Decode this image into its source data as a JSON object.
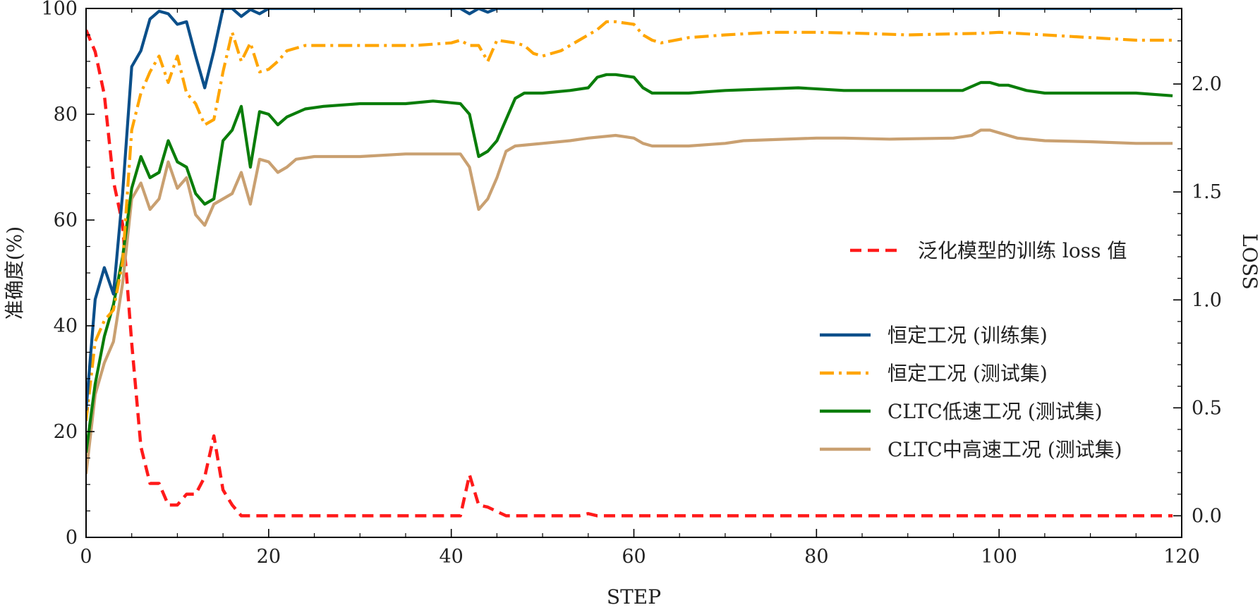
{
  "chart_data": {
    "type": "line",
    "title": "",
    "xlabel": "STEP",
    "ylabel_left": "准确度(%)",
    "ylabel_right": "LOSS",
    "xlim": [
      0,
      120
    ],
    "ylim_left": [
      0,
      100
    ],
    "ylim_right": [
      -0.1,
      2.35
    ],
    "xticks": [
      0,
      20,
      40,
      60,
      80,
      100,
      120
    ],
    "yticks_left": [
      0,
      20,
      40,
      60,
      80,
      100
    ],
    "yticks_right": [
      0.0,
      0.5,
      1.0,
      1.5,
      2.0
    ],
    "xtick_labels": [
      "0",
      "20",
      "40",
      "60",
      "80",
      "100",
      "120"
    ],
    "ytick_labels_left": [
      "0",
      "20",
      "40",
      "60",
      "80",
      "100"
    ],
    "ytick_labels_right": [
      "0.0",
      "0.5",
      "1.0",
      "1.5",
      "2.0"
    ],
    "grid": false,
    "legend_loss_placement": "center-right",
    "legend_accuracy_placement": "lower-right",
    "series": [
      {
        "name": "恒定工况 (训练集)",
        "axis": "left",
        "color": "#0b4f8a",
        "dash": "solid",
        "points": [
          [
            0,
            24
          ],
          [
            1,
            45
          ],
          [
            2,
            51
          ],
          [
            3,
            46
          ],
          [
            4,
            65
          ],
          [
            5,
            89
          ],
          [
            6,
            92
          ],
          [
            7,
            98
          ],
          [
            8,
            99.5
          ],
          [
            9,
            99
          ],
          [
            10,
            97
          ],
          [
            11,
            97.5
          ],
          [
            12,
            91
          ],
          [
            13,
            85
          ],
          [
            14,
            92
          ],
          [
            15,
            100
          ],
          [
            16,
            100
          ],
          [
            17,
            98.5
          ],
          [
            18,
            99.8
          ],
          [
            19,
            99
          ],
          [
            20,
            100
          ],
          [
            30,
            100
          ],
          [
            40,
            100
          ],
          [
            41,
            100
          ],
          [
            42,
            99
          ],
          [
            43,
            100
          ],
          [
            44,
            99.3
          ],
          [
            45,
            100
          ],
          [
            60,
            100
          ],
          [
            80,
            100
          ],
          [
            100,
            100
          ],
          [
            119,
            100
          ]
        ]
      },
      {
        "name": "恒定工况 (测试集)",
        "axis": "left",
        "color": "#ffa500",
        "dash": "dashdot",
        "points": [
          [
            0,
            22
          ],
          [
            1,
            37
          ],
          [
            2,
            41
          ],
          [
            3,
            43
          ],
          [
            4,
            52
          ],
          [
            5,
            77
          ],
          [
            6,
            84
          ],
          [
            7,
            88
          ],
          [
            8,
            91
          ],
          [
            9,
            86
          ],
          [
            10,
            91
          ],
          [
            11,
            84
          ],
          [
            12,
            82
          ],
          [
            13,
            78
          ],
          [
            14,
            79
          ],
          [
            15,
            88
          ],
          [
            16,
            95.5
          ],
          [
            17,
            90
          ],
          [
            18,
            93.5
          ],
          [
            19,
            88
          ],
          [
            20,
            88.5
          ],
          [
            21,
            90
          ],
          [
            22,
            92
          ],
          [
            24,
            93
          ],
          [
            26,
            93
          ],
          [
            30,
            93
          ],
          [
            36,
            93
          ],
          [
            40,
            93.5
          ],
          [
            41,
            94
          ],
          [
            42,
            93
          ],
          [
            43,
            93
          ],
          [
            44,
            90
          ],
          [
            45,
            94
          ],
          [
            47,
            93.5
          ],
          [
            48,
            93
          ],
          [
            49,
            91.5
          ],
          [
            50,
            91
          ],
          [
            52,
            92
          ],
          [
            54,
            94
          ],
          [
            56,
            96
          ],
          [
            57,
            97.5
          ],
          [
            58,
            97.5
          ],
          [
            60,
            97
          ],
          [
            61,
            95
          ],
          [
            62,
            94
          ],
          [
            63,
            93.5
          ],
          [
            66,
            94.5
          ],
          [
            70,
            95
          ],
          [
            75,
            95.5
          ],
          [
            80,
            95.5
          ],
          [
            85,
            95.3
          ],
          [
            90,
            95
          ],
          [
            95,
            95.2
          ],
          [
            98,
            95.3
          ],
          [
            100,
            95.5
          ],
          [
            105,
            95
          ],
          [
            110,
            94.5
          ],
          [
            115,
            94
          ],
          [
            119,
            94
          ]
        ]
      },
      {
        "name": "CLTC低速工况 (测试集)",
        "axis": "left",
        "color": "#0a7d0a",
        "dash": "solid",
        "points": [
          [
            0,
            16
          ],
          [
            1,
            29
          ],
          [
            2,
            38
          ],
          [
            3,
            44
          ],
          [
            4,
            53
          ],
          [
            5,
            66
          ],
          [
            6,
            72
          ],
          [
            7,
            68
          ],
          [
            8,
            69
          ],
          [
            9,
            75
          ],
          [
            10,
            71
          ],
          [
            11,
            70
          ],
          [
            12,
            65
          ],
          [
            13,
            63
          ],
          [
            14,
            64
          ],
          [
            15,
            75
          ],
          [
            16,
            77
          ],
          [
            17,
            81.5
          ],
          [
            18,
            70
          ],
          [
            19,
            80.5
          ],
          [
            20,
            80
          ],
          [
            21,
            78
          ],
          [
            22,
            79.5
          ],
          [
            24,
            81
          ],
          [
            26,
            81.5
          ],
          [
            30,
            82
          ],
          [
            35,
            82
          ],
          [
            38,
            82.5
          ],
          [
            41,
            82
          ],
          [
            42,
            80
          ],
          [
            43,
            72
          ],
          [
            44,
            73
          ],
          [
            45,
            75
          ],
          [
            46,
            79
          ],
          [
            47,
            83
          ],
          [
            48,
            84
          ],
          [
            50,
            84
          ],
          [
            53,
            84.5
          ],
          [
            55,
            85
          ],
          [
            56,
            87
          ],
          [
            57,
            87.5
          ],
          [
            58,
            87.5
          ],
          [
            60,
            87
          ],
          [
            61,
            85
          ],
          [
            62,
            84
          ],
          [
            66,
            84
          ],
          [
            70,
            84.5
          ],
          [
            78,
            85
          ],
          [
            83,
            84.5
          ],
          [
            90,
            84.5
          ],
          [
            96,
            84.5
          ],
          [
            98,
            86
          ],
          [
            99,
            86
          ],
          [
            100,
            85.5
          ],
          [
            101,
            85.5
          ],
          [
            103,
            84.5
          ],
          [
            105,
            84
          ],
          [
            110,
            84
          ],
          [
            115,
            84
          ],
          [
            119,
            83.5
          ]
        ]
      },
      {
        "name": "CLTC中高速工况 (测试集)",
        "axis": "left",
        "color": "#c9a071",
        "dash": "solid",
        "points": [
          [
            0,
            12
          ],
          [
            1,
            27
          ],
          [
            2,
            33
          ],
          [
            3,
            37
          ],
          [
            4,
            48
          ],
          [
            5,
            64
          ],
          [
            6,
            67
          ],
          [
            7,
            62
          ],
          [
            8,
            64
          ],
          [
            9,
            71
          ],
          [
            10,
            66
          ],
          [
            11,
            68
          ],
          [
            12,
            61
          ],
          [
            13,
            59
          ],
          [
            14,
            63
          ],
          [
            16,
            65
          ],
          [
            17,
            69
          ],
          [
            18,
            63
          ],
          [
            19,
            71.5
          ],
          [
            20,
            71
          ],
          [
            21,
            69
          ],
          [
            22,
            70
          ],
          [
            23,
            71.5
          ],
          [
            25,
            72
          ],
          [
            30,
            72
          ],
          [
            35,
            72.5
          ],
          [
            41,
            72.5
          ],
          [
            42,
            70
          ],
          [
            43,
            62
          ],
          [
            44,
            64
          ],
          [
            45,
            68
          ],
          [
            46,
            73
          ],
          [
            47,
            74
          ],
          [
            50,
            74.5
          ],
          [
            53,
            75
          ],
          [
            55,
            75.5
          ],
          [
            58,
            76
          ],
          [
            60,
            75.5
          ],
          [
            61,
            74.5
          ],
          [
            62,
            74
          ],
          [
            66,
            74
          ],
          [
            70,
            74.5
          ],
          [
            72,
            75
          ],
          [
            80,
            75.5
          ],
          [
            83,
            75.5
          ],
          [
            88,
            75.3
          ],
          [
            95,
            75.5
          ],
          [
            97,
            76
          ],
          [
            98,
            77
          ],
          [
            99,
            77
          ],
          [
            100,
            76.5
          ],
          [
            102,
            75.5
          ],
          [
            105,
            75
          ],
          [
            110,
            74.8
          ],
          [
            115,
            74.5
          ],
          [
            119,
            74.5
          ]
        ]
      },
      {
        "name": "泛化模型的训练 loss 值",
        "axis": "right",
        "color": "#ff1a1a",
        "dash": "dashed",
        "points": [
          [
            0,
            2.25
          ],
          [
            1,
            2.15
          ],
          [
            2,
            1.95
          ],
          [
            3,
            1.55
          ],
          [
            4,
            1.35
          ],
          [
            5,
            0.8
          ],
          [
            6,
            0.32
          ],
          [
            7,
            0.15
          ],
          [
            8,
            0.15
          ],
          [
            9,
            0.05
          ],
          [
            10,
            0.05
          ],
          [
            11,
            0.1
          ],
          [
            12,
            0.1
          ],
          [
            13,
            0.18
          ],
          [
            14,
            0.37
          ],
          [
            15,
            0.12
          ],
          [
            16,
            0.05
          ],
          [
            17,
            0.0
          ],
          [
            18,
            0.0
          ],
          [
            20,
            0.0
          ],
          [
            30,
            0.0
          ],
          [
            40,
            0.0
          ],
          [
            41,
            0.0
          ],
          [
            42,
            0.19
          ],
          [
            43,
            0.05
          ],
          [
            44,
            0.04
          ],
          [
            46,
            0.0
          ],
          [
            54,
            0.0
          ],
          [
            55,
            0.01
          ],
          [
            56,
            0.0
          ],
          [
            60,
            0.0
          ],
          [
            80,
            0.0
          ],
          [
            100,
            0.0
          ],
          [
            119,
            0.0
          ]
        ]
      }
    ]
  }
}
